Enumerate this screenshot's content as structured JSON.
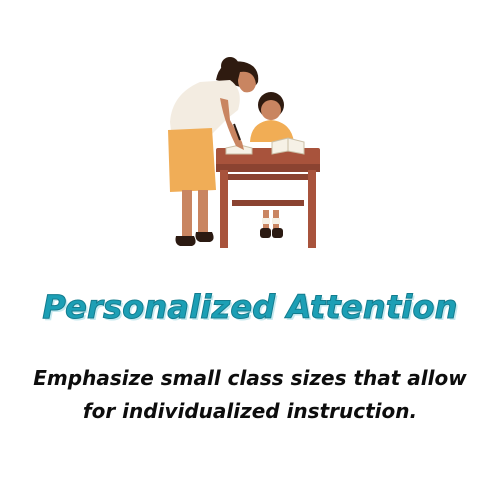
{
  "illustration": {
    "icon": "teacher-helping-student-icon",
    "colors": {
      "skin": "#c98561",
      "hair": "#2f1b10",
      "shirt": "#f3ece1",
      "skirt": "#f0ad57",
      "child_shirt": "#f1ad55",
      "desk": "#a8533c",
      "desk_dark": "#8b4331",
      "book": "#f6f1e6",
      "shoes": "#2b1a12"
    }
  },
  "headline": {
    "text": "Personalized Attention",
    "color": "#1c9fb5"
  },
  "body": {
    "line1": "Emphasize small class sizes that allow",
    "line2": "for individualized instruction."
  }
}
